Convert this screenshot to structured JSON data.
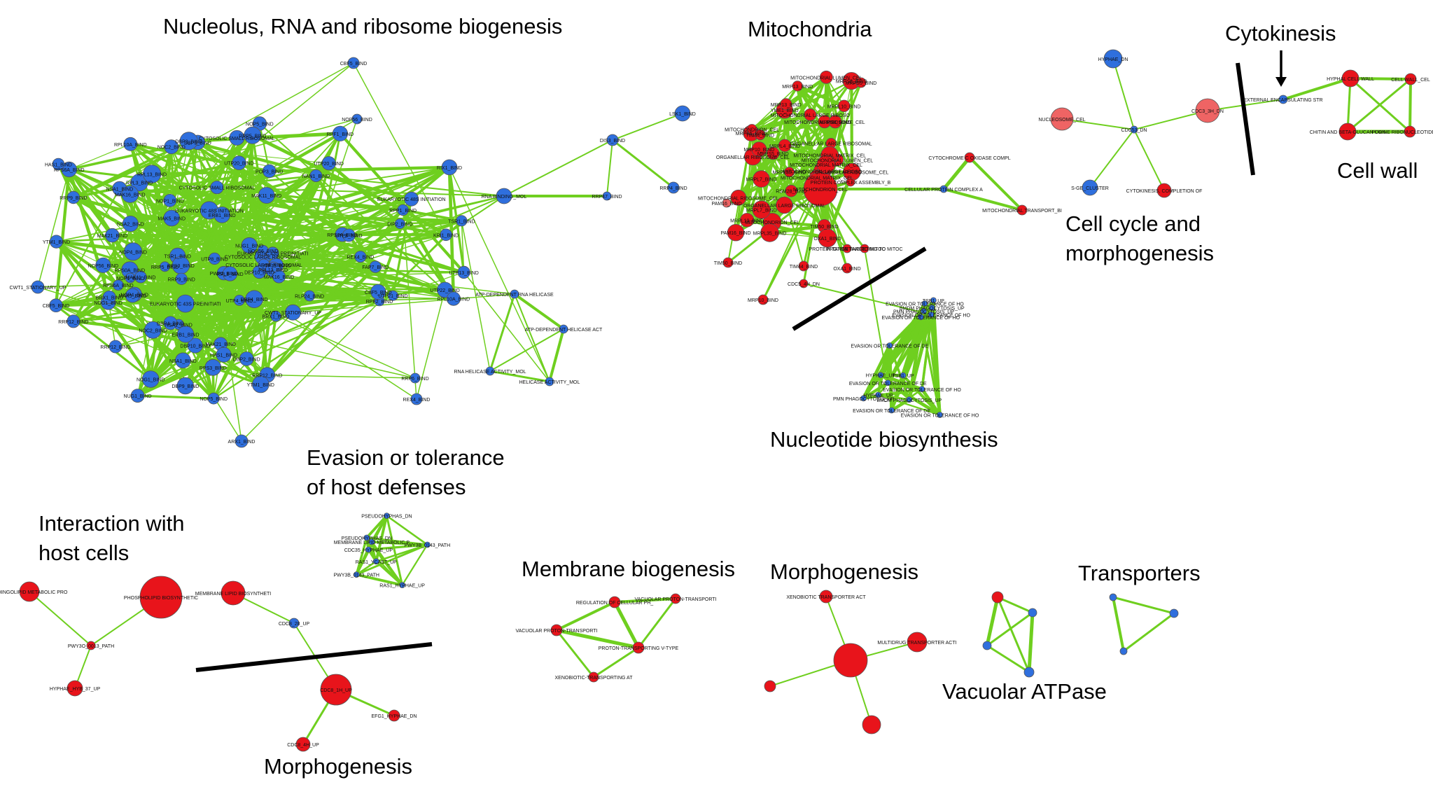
{
  "colors": {
    "edge": "#6fcf1f",
    "node_blue": "#2f6fdd",
    "node_red": "#e8141b",
    "node_light_red": "#ef6464",
    "divider": "#000000",
    "title": "#000000"
  },
  "titles": [
    {
      "id": "nucleolus",
      "lines": [
        "Nucleolus, RNA and ribosome biogenesis"
      ]
    },
    {
      "id": "mitochondria",
      "lines": [
        "Mitochondria"
      ]
    },
    {
      "id": "cytokinesis",
      "lines": [
        "Cytokinesis"
      ]
    },
    {
      "id": "cell-wall",
      "lines": [
        "Cell wall"
      ]
    },
    {
      "id": "cell-cycle",
      "lines": [
        "Cell cycle and",
        "morphogenesis"
      ]
    },
    {
      "id": "nucleotide",
      "lines": [
        "Nucleotide biosynthesis"
      ]
    },
    {
      "id": "evasion",
      "lines": [
        "Evasion or tolerance",
        "of host defenses"
      ]
    },
    {
      "id": "interaction",
      "lines": [
        "Interaction with",
        "host cells"
      ]
    },
    {
      "id": "membrane",
      "lines": [
        "Membrane biogenesis"
      ]
    },
    {
      "id": "morphogenesis-right",
      "lines": [
        "Morphogenesis"
      ]
    },
    {
      "id": "transporters",
      "lines": [
        "Transporters"
      ]
    },
    {
      "id": "vacuolar",
      "lines": [
        "Vacuolar ATPase"
      ]
    },
    {
      "id": "morphogenesis-left",
      "lines": [
        "Morphogenesis"
      ]
    }
  ],
  "node_labels": [
    "CBF5_BIND",
    "NOP56_BIND",
    "RPS0A_BIND",
    "TSR1_BIND",
    "UTP20_BIND",
    "UTP8_BIND",
    "EUKARYOTIC 48S INITIATION COMPLEX_CEL",
    "CYTOSOLIC SMALL RIBOSOMAL SUBUNIT_CEL",
    "CYTOSOLIC LARGE RIBOSOMAL SUBUNIT_CEL",
    "EUKARYOTIC 43S PREINITIATION COMPLEX_CEL",
    "RPL3_BIND",
    "RPL10A_BIND",
    "RPL13_BIND",
    "RPS3_BIND",
    "RPS6A_BIND",
    "NOP1_BIND",
    "NOP5_BIND",
    "NOP4_BIND",
    "NOC2_BIND",
    "NSA1_BIND",
    "NSA2_BIND",
    "NOG1_BIND",
    "NUG1_BIND",
    "MAK5_BIND",
    "MAK11_BIND",
    "MAK21_BIND",
    "MAK16_BIND",
    "RRP5_BIND",
    "RRP9_BIND",
    "RRP12_BIND",
    "DBP9_BIND",
    "DBP2_BIND",
    "DBP4_BIND",
    "DBP10_BIND",
    "HAS1_BIND",
    "YTM1_BIND",
    "ERB1_BIND",
    "BRX1_BIND",
    "RLP24_BIND",
    "RPF1_BIND",
    "RPF2_BIND",
    "RIX1_BIND",
    "REX4_BIND",
    "POP3_BIND",
    "PWP2_BIND",
    "DIP2_BIND",
    "UTP4_BIND",
    "UTP21_BIND",
    "UTP22_BIND",
    "UTP13_BIND",
    "UTP15_BIND",
    "NAN1_BIND",
    "KRI1_BIND",
    "FAP7_BIND",
    "RPP1_BIND",
    "CWT1_STATIONARY_UP",
    "ARX1_BIND",
    "RRP6_BIND",
    "LSK1_BIND",
    "DIS3_BIND",
    "RRP4_BIND",
    "RRP47_BIND",
    "RNA BINDING_MOL",
    "SMALL NUCLEOLAR RIBONUCLEOPROTEIN COMPLEX_CEL",
    "RNA METABOLIC PROCESS_BIO",
    "PRERIBOSOME ASSEMBLY_BIO",
    "ATP-DEPENDENT RNA HELICASE ACTIVITY_MOL",
    "ATP-DEPENDENT HELICASE ACTIVITY_MOL",
    "RNA HELICASE ACTIVITY_MOL",
    "HELICASE ACTIVITY_MOL",
    "ORGANELLAR LARGE RIBOSOMAL SUBUNIT_CEL",
    "MITOCHONDRIAL LARGE RIBOSOMAL SUBUNIT_CEL",
    "ORGANELLAR RIBOSOME_CEL",
    "MITOCHONDRIAL RIBOSOME_CEL",
    "MITOCHONDRIAL LUMEN_CEL",
    "MITOCHONDRIAL MATRIX_CEL",
    "MITOCHONDRION_CEL",
    "MRPL7_BIND",
    "MRPL10_BIND",
    "MRPS5_BIND",
    "MRPS8_BIND",
    "MRP13_BIND",
    "MRPL35_BIND",
    "MRPL4_BIND",
    "RSM28_BIND",
    "PAM16_BIND",
    "TIM50_BIND",
    "TIM44_BIND",
    "OXA1_BIND",
    "MRP10_BIND",
    "YME1_BIND",
    "PROTEIN COMPLEX ASSEMBLY_BIO",
    "CYTOCHROME C OXIDASE COMPLEX ASSEMBLY_BIO",
    "CELLULAR PROTEIN COMPLEX ASSEMBLY_BIO",
    "MITOCHONDRIAL TRANSPORT_BIO",
    "PROTEIN TARGETING TO MITOCHONDRION_BIO",
    "CDC5_4H_DN",
    "HYPHAE_DN",
    "NUCLEOSOME_CEL",
    "CDC53_DN",
    "CDC3_3H_DN",
    "S-GE_CLUSTER",
    "CYTOKINESIS, COMPLETION OF SEPARATION_BIO",
    "EXTERNAL ENCAPSULATING STRUCTURE_CEL",
    "HYPHAL CELL WALL",
    "CELL WALL_CEL",
    "CHITIN AND BETA-GLUCAN CONTAINING CELL WALL",
    "PURINE RIBONUCLEOTIDE BIOSYNTHETIC PROCESS_BIO",
    "PURINE RIBONUCLEOSIDE MONOPHOSPHATE METABOLIC PROCESS_BIO",
    "PURINE NUCLEOSIDE MONOPHOSPHATE BIOSYNTHETIC PROCESS_BIO",
    "RIBONUCLEOTIDE BIOSYNTHETIC PROCESS_BIO",
    "RIBONUCLEOSIDE MONOPHOSPHATE BIOSYNTHETIC PROCESS_BIO",
    "PURINE NUCLEOTIDE METABOLIC PROCESS_BIO",
    "NUCLEOTIDE BIOSYNTHETIC PROCESS_BIO",
    "EVASION OR TOLERANCE OF DEFENSE RESPONSE OF OTHER ORGANISM DURING SYMBIOTIC INTERACTION_BIO",
    "EVASION OR TOLERANCE OF IMMUNE RESPONSE OF OTHER ORGANISM DURING SYMBIOTIC INTERACTION_BIO",
    "EVASION OR TOLERANCE OF HOST DEFENSE RESPONSE_BIO",
    "EVASION OR TOLERANCE OF HOST DEFENSES_BIO",
    "EVASION OR TOLERANCE OF DEFENSE RESPONSE_BIO",
    "EVASION OR TOLERANCE OF HOST IMMUNE RESPONSE_BIO",
    "PMN PHAGOCYTOSIS_UP",
    "BMDM PHAGOCYTOSIS_UP",
    "HYPHAE_UP",
    "TSB1_UP",
    "PSEUDOHYPHAS_DN",
    "PWY3B_0143_PATH",
    "CDC35_HYPHAE_UP",
    "RAS1_HYPHAE_UP",
    "RAS1_YCAST_UP",
    "MEMBRANE LIPID METABOLIC PROCESS_BIO",
    "SPHINGOLIPID METABOLIC PROCESS_BIO",
    "PHOSPHOLIPID BIOSYNTHETIC PROCESS_BIO",
    "MEMBRANE LIPID BIOSYNTHETIC PROCESS_BIO",
    "PWY3O_0013_PATH",
    "HYPHAE_HYB_37_UP",
    "CDC8_28_UP",
    "CDC8_1H_UP",
    "EFG1_HYPHAE_DN",
    "CDC8_4H_UP",
    "REGULATION OF CELLULAR PH_BIO",
    "VACUOLAR PROTON-TRANSPORTING V-TYPE ATPASE, V0 DOMAIN_CEL",
    "VACUOLAR PROTON-TRANSPORTING V-TYPE ATPASE COMPLEX_CEL",
    "PROTON-TRANSPORTING V-TYPE ATPASE COMPLEX_CEL",
    "XENOBIOTIC-TRANSPORTING ATPASE ACTIVITY_MOL",
    "XENOBIOTIC TRANSPORTER ACTIVITY_MOL",
    "MULTIDRUG TRANSPORTER ACTIVITY_MOL"
  ]
}
